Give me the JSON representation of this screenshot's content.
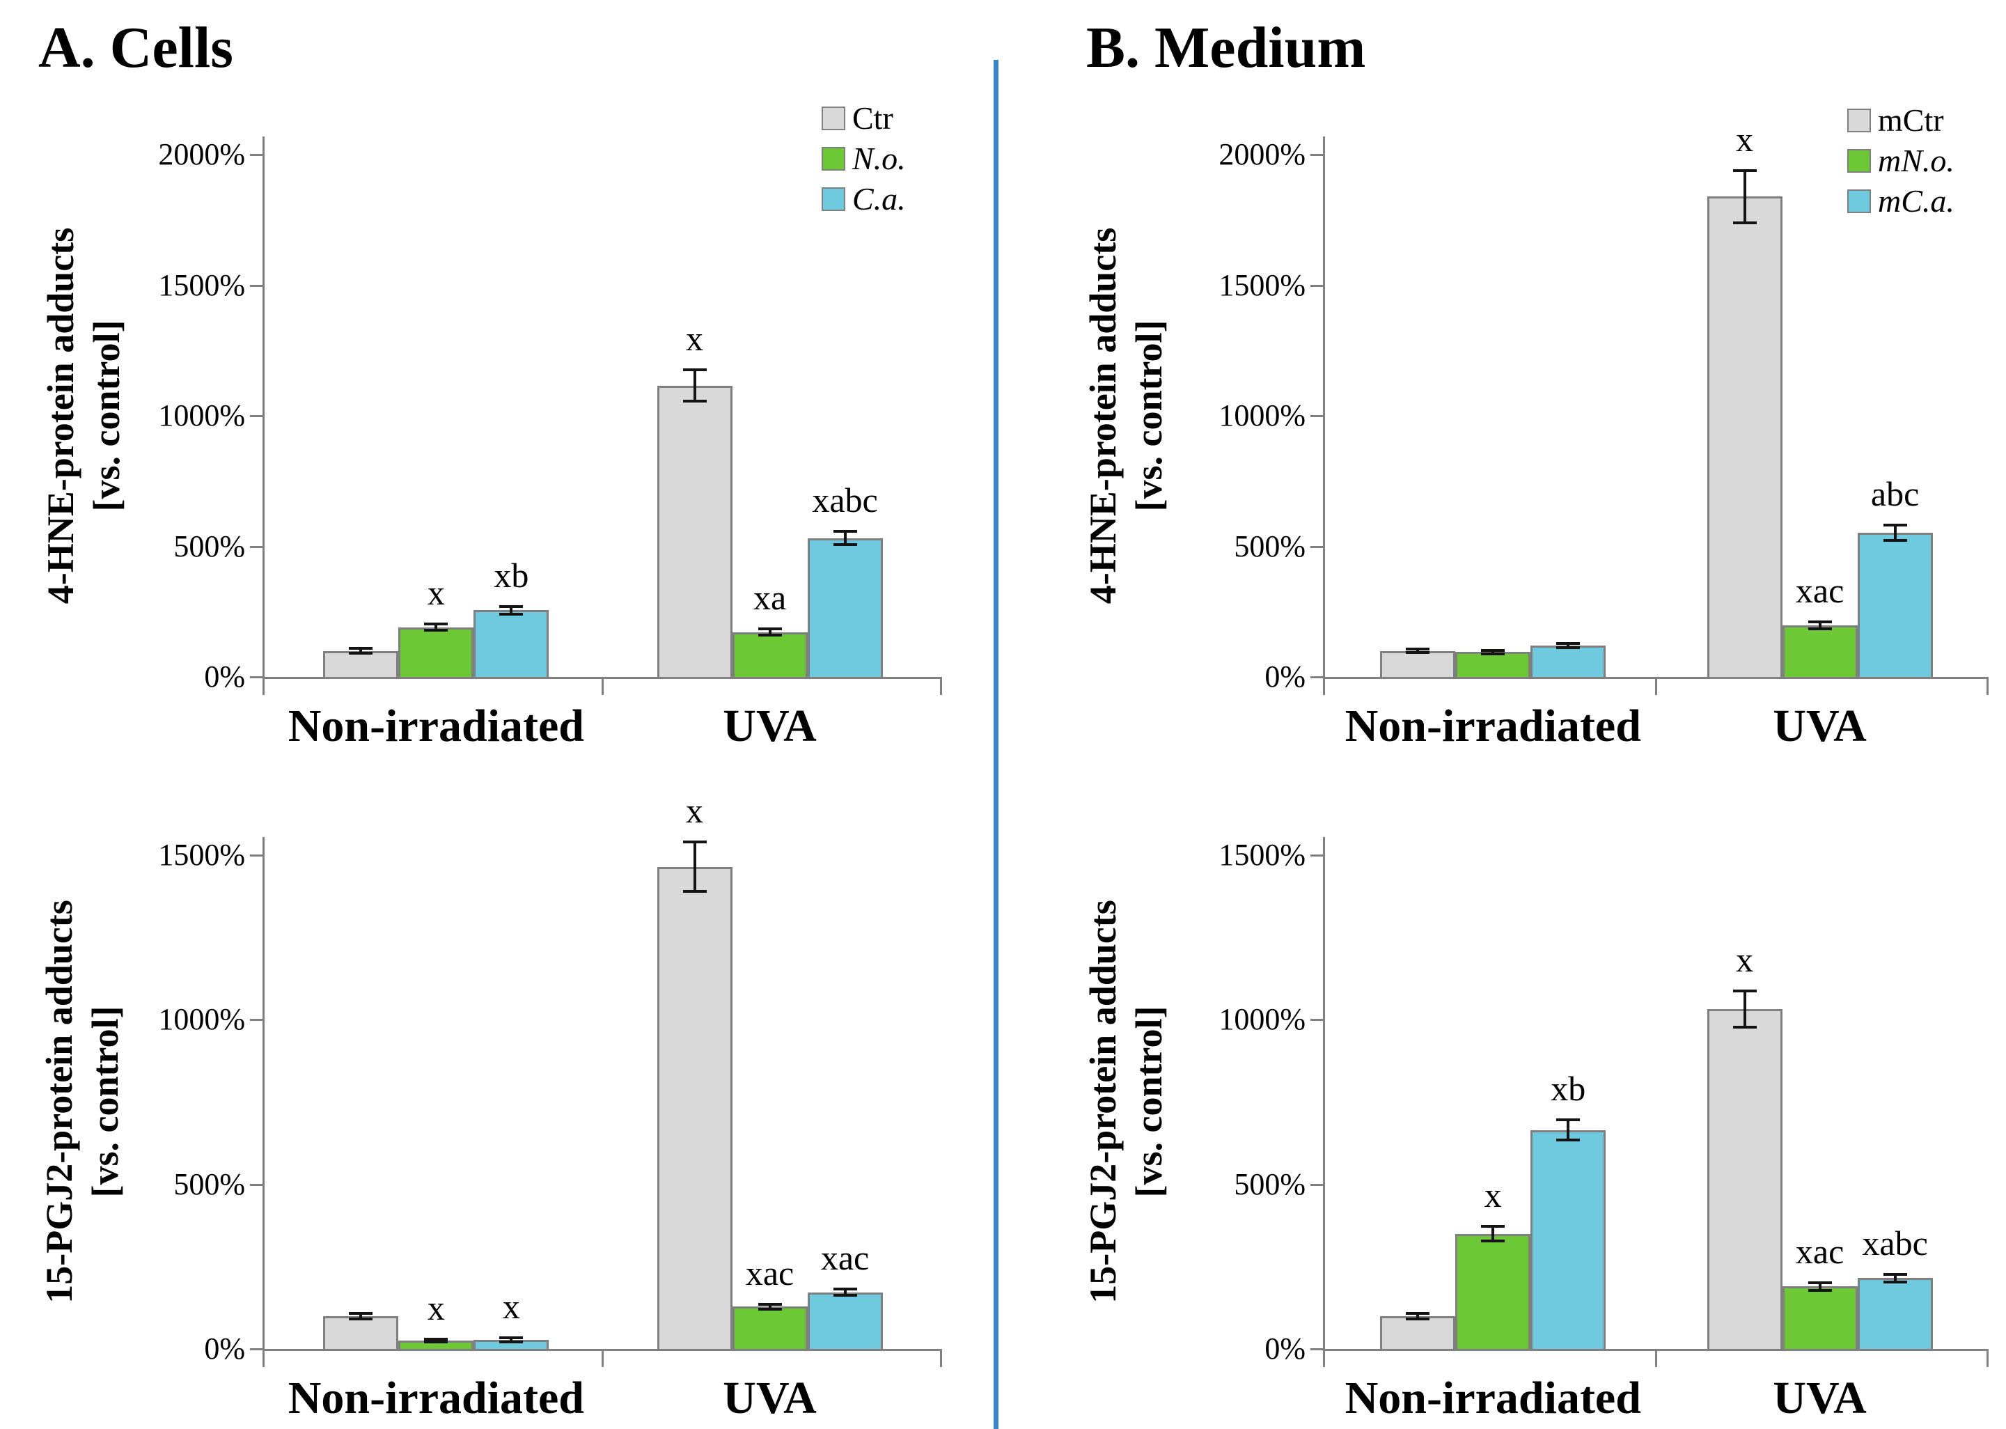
{
  "panels": [
    {
      "label": "A. Cells"
    },
    {
      "label": "B. Medium"
    }
  ],
  "divider_color": "#3A86C8",
  "axis_color": "#808080",
  "chart_data": [
    {
      "type": "bar",
      "panel": "A. Cells",
      "ylabel_line1": "4-HNE-protein adducts",
      "ylabel_line2": "[vs. control]",
      "categories": [
        "Non-irradiated",
        "UVA"
      ],
      "series": [
        {
          "name": "Ctr",
          "color": "#D9D9D9",
          "italic": false,
          "values": [
            100,
            1115
          ],
          "errors": [
            10,
            60
          ],
          "sig": [
            "",
            "x"
          ]
        },
        {
          "name": "N.o.",
          "color": "#6CC834",
          "italic": true,
          "values": [
            190,
            172
          ],
          "errors": [
            12,
            12
          ],
          "sig": [
            "x",
            "xa"
          ]
        },
        {
          "name": "C.a.",
          "color": "#70CADF",
          "italic": true,
          "values": [
            255,
            532
          ],
          "errors": [
            14,
            26
          ],
          "sig": [
            "xb",
            "xabc"
          ]
        }
      ],
      "ylim": [
        0,
        2000
      ],
      "ytick_step": 500,
      "ytick_labels": [
        "0%",
        "500%",
        "1000%",
        "1500%",
        "2000%"
      ],
      "grid": false,
      "legend": true,
      "legend_position": "top-right"
    },
    {
      "type": "bar",
      "panel": "B. Medium",
      "ylabel_line1": "4-HNE-protein adducts",
      "ylabel_line2": "[vs. control]",
      "categories": [
        "Non-irradiated",
        "UVA"
      ],
      "series": [
        {
          "name": "mCtr",
          "color": "#D9D9D9",
          "italic": false,
          "values": [
            100,
            1840
          ],
          "errors": [
            6,
            100
          ],
          "sig": [
            "",
            "x"
          ]
        },
        {
          "name": "mN.o.",
          "color": "#6CC834",
          "italic": true,
          "values": [
            95,
            197
          ],
          "errors": [
            6,
            14
          ],
          "sig": [
            "",
            "xac"
          ]
        },
        {
          "name": "mC.a.",
          "color": "#70CADF",
          "italic": true,
          "values": [
            120,
            552
          ],
          "errors": [
            7,
            30
          ],
          "sig": [
            "",
            "abc"
          ]
        }
      ],
      "ylim": [
        0,
        2000
      ],
      "ytick_step": 500,
      "ytick_labels": [
        "0%",
        "500%",
        "1000%",
        "1500%",
        "2000%"
      ],
      "grid": false,
      "legend": true,
      "legend_position": "top-right"
    },
    {
      "type": "bar",
      "panel": "A. Cells",
      "ylabel_line1": "15-PGJ2-protein adducts",
      "ylabel_line2": "[vs. control]",
      "categories": [
        "Non-irradiated",
        "UVA"
      ],
      "series": [
        {
          "name": "Ctr",
          "color": "#D9D9D9",
          "italic": false,
          "values": [
            100,
            1465
          ],
          "errors": [
            8,
            75
          ],
          "sig": [
            "",
            "x"
          ]
        },
        {
          "name": "N.o.",
          "color": "#6CC834",
          "italic": true,
          "values": [
            25,
            128
          ],
          "errors": [
            4,
            8
          ],
          "sig": [
            "x",
            "xac"
          ]
        },
        {
          "name": "C.a.",
          "color": "#70CADF",
          "italic": true,
          "values": [
            28,
            172
          ],
          "errors": [
            6,
            10
          ],
          "sig": [
            "x",
            "xac"
          ]
        }
      ],
      "ylim": [
        0,
        1500
      ],
      "ytick_step": 500,
      "ytick_labels": [
        "0%",
        "500%",
        "1000%",
        "1500%"
      ],
      "grid": false,
      "legend": false
    },
    {
      "type": "bar",
      "panel": "B. Medium",
      "ylabel_line1": "15-PGJ2-protein adducts",
      "ylabel_line2": "[vs. control]",
      "categories": [
        "Non-irradiated",
        "UVA"
      ],
      "series": [
        {
          "name": "mCtr",
          "color": "#D9D9D9",
          "italic": false,
          "values": [
            100,
            1032
          ],
          "errors": [
            8,
            55
          ],
          "sig": [
            "",
            "x"
          ]
        },
        {
          "name": "mN.o.",
          "color": "#6CC834",
          "italic": true,
          "values": [
            350,
            190
          ],
          "errors": [
            22,
            12
          ],
          "sig": [
            "x",
            "xac"
          ]
        },
        {
          "name": "mC.a.",
          "color": "#70CADF",
          "italic": true,
          "values": [
            665,
            215
          ],
          "errors": [
            30,
            12
          ],
          "sig": [
            "xb",
            "xabc"
          ]
        }
      ],
      "ylim": [
        0,
        1500
      ],
      "ytick_step": 500,
      "ytick_labels": [
        "0%",
        "500%",
        "1000%",
        "1500%"
      ],
      "grid": false,
      "legend": false
    }
  ]
}
